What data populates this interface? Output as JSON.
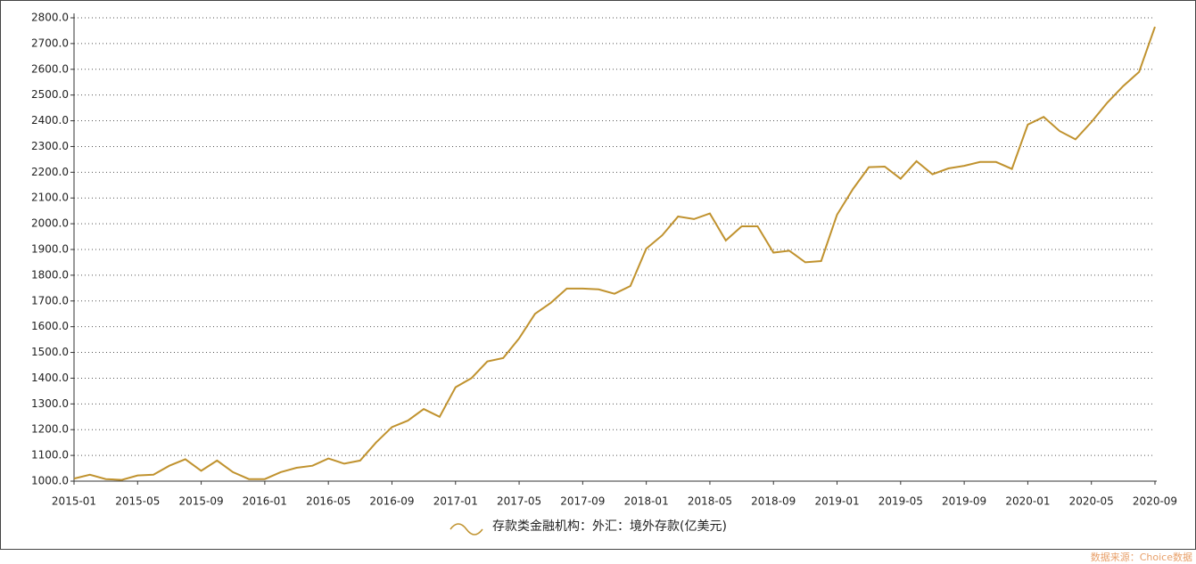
{
  "chart_data": {
    "type": "line",
    "categories": [
      "2015-01",
      null,
      null,
      null,
      "2015-05",
      null,
      null,
      null,
      "2015-09",
      null,
      null,
      null,
      "2016-01",
      null,
      null,
      null,
      "2016-05",
      null,
      null,
      null,
      "2016-09",
      null,
      null,
      null,
      "2017-01",
      null,
      null,
      null,
      "2017-05",
      null,
      null,
      null,
      "2017-09",
      null,
      null,
      null,
      "2018-01",
      null,
      null,
      null,
      "2018-05",
      null,
      null,
      null,
      "2018-09",
      null,
      null,
      null,
      "2019-01",
      null,
      null,
      null,
      "2019-05",
      null,
      null,
      null,
      "2019-09",
      null,
      null,
      null,
      "2020-01",
      null,
      null,
      null,
      "2020-05",
      null,
      null,
      null,
      "2020-09"
    ],
    "series": [
      {
        "name": "存款类金融机构：外汇：境外存款(亿美元)",
        "color": "#c0922e",
        "values": [
          1010,
          1025,
          1008,
          1005,
          1022,
          1025,
          1060,
          1085,
          1040,
          1080,
          1035,
          1008,
          1008,
          1035,
          1052,
          1060,
          1088,
          1068,
          1080,
          1150,
          1210,
          1235,
          1280,
          1250,
          1365,
          1400,
          1465,
          1478,
          1555,
          1650,
          1693,
          1748,
          1748,
          1745,
          1728,
          1758,
          1903,
          1955,
          2028,
          2018,
          2040,
          1935,
          1990,
          1990,
          1888,
          1895,
          1850,
          1855,
          2035,
          2135,
          2220,
          2222,
          2175,
          2243,
          2192,
          2215,
          2225,
          2240,
          2240,
          2213,
          2385,
          2415,
          2360,
          2328,
          2395,
          2470,
          2535,
          2590,
          2765
        ]
      }
    ],
    "ylim": [
      1000,
      2800
    ],
    "yticks": [
      {
        "value": 1000,
        "label": "1000.0"
      },
      {
        "value": 1100,
        "label": "1100.0"
      },
      {
        "value": 1200,
        "label": "1200.0"
      },
      {
        "value": 1300,
        "label": "1300.0"
      },
      {
        "value": 1400,
        "label": "1400.0"
      },
      {
        "value": 1500,
        "label": "1500.0"
      },
      {
        "value": 1600,
        "label": "1600.0"
      },
      {
        "value": 1700,
        "label": "1700.0"
      },
      {
        "value": 1800,
        "label": "1800.0"
      },
      {
        "value": 1900,
        "label": "1900.0"
      },
      {
        "value": 2000,
        "label": "2000.0"
      },
      {
        "value": 2100,
        "label": "2100.0"
      },
      {
        "value": 2200,
        "label": "2200.0"
      },
      {
        "value": 2300,
        "label": "2300.0"
      },
      {
        "value": 2400,
        "label": "2400.0"
      },
      {
        "value": 2500,
        "label": "2500.0"
      },
      {
        "value": 2600,
        "label": "2600.0"
      },
      {
        "value": 2700,
        "label": "2700.0"
      },
      {
        "value": 2800,
        "label": "2800.0"
      }
    ],
    "grid": true,
    "source": "数据来源：Choice数据"
  }
}
